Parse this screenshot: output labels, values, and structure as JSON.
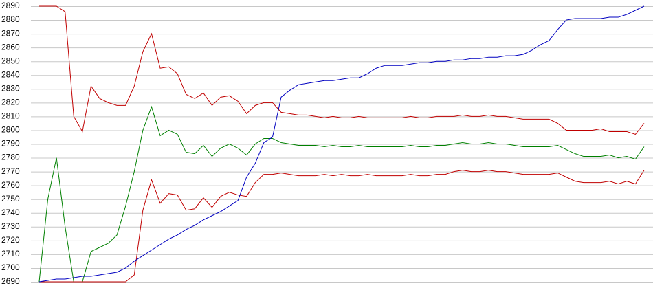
{
  "chart_data": {
    "type": "line",
    "ylim": [
      2690,
      2890
    ],
    "yticks": [
      2690,
      2700,
      2710,
      2720,
      2730,
      2740,
      2750,
      2760,
      2770,
      2780,
      2790,
      2800,
      2810,
      2820,
      2830,
      2840,
      2850,
      2860,
      2870,
      2880,
      2890
    ],
    "grid": true,
    "series": [
      {
        "color": "#c00000",
        "values": [
          2890,
          2890,
          2890,
          2886,
          2810,
          2799,
          2832,
          2823,
          2820,
          2818,
          2818,
          2832,
          2857,
          2870,
          2845,
          2846,
          2841,
          2826,
          2823,
          2827,
          2818,
          2824,
          2825,
          2821,
          2812,
          2818,
          2820,
          2820,
          2813,
          2812,
          2811,
          2811,
          2810,
          2809,
          2810,
          2809,
          2809,
          2810,
          2809,
          2809,
          2809,
          2809,
          2809,
          2810,
          2809,
          2809,
          2810,
          2810,
          2810,
          2811,
          2810,
          2810,
          2811,
          2810,
          2810,
          2809,
          2808,
          2808,
          2808,
          2808,
          2805,
          2800,
          2800,
          2800,
          2800,
          2801,
          2799,
          2799,
          2799,
          2797,
          2805
        ]
      },
      {
        "color": "#008000",
        "values": [
          2690,
          2750,
          2780,
          2730,
          2690,
          2690,
          2712,
          2715,
          2718,
          2724,
          2745,
          2770,
          2800,
          2817,
          2796,
          2800,
          2797,
          2784,
          2783,
          2789,
          2781,
          2787,
          2790,
          2787,
          2782,
          2790,
          2794,
          2794,
          2791,
          2790,
          2789,
          2789,
          2789,
          2788,
          2789,
          2788,
          2788,
          2789,
          2788,
          2788,
          2788,
          2788,
          2788,
          2789,
          2788,
          2788,
          2789,
          2789,
          2790,
          2791,
          2790,
          2790,
          2791,
          2790,
          2790,
          2789,
          2788,
          2788,
          2788,
          2788,
          2789,
          2786,
          2783,
          2781,
          2781,
          2781,
          2782,
          2780,
          2781,
          2779,
          2788
        ]
      },
      {
        "color": "#c00000",
        "values": [
          2690,
          2690,
          2690,
          2690,
          2690,
          2690,
          2690,
          2690,
          2690,
          2690,
          2690,
          2695,
          2742,
          2764,
          2747,
          2754,
          2753,
          2742,
          2743,
          2751,
          2744,
          2752,
          2755,
          2753,
          2752,
          2762,
          2768,
          2768,
          2769,
          2768,
          2767,
          2767,
          2767,
          2768,
          2767,
          2768,
          2767,
          2767,
          2768,
          2767,
          2767,
          2767,
          2767,
          2768,
          2767,
          2767,
          2768,
          2768,
          2770,
          2771,
          2770,
          2770,
          2771,
          2770,
          2770,
          2769,
          2768,
          2768,
          2768,
          2768,
          2769,
          2766,
          2763,
          2762,
          2762,
          2762,
          2763,
          2761,
          2763,
          2761,
          2771
        ]
      },
      {
        "color": "#0000c0",
        "values": [
          2690,
          2691,
          2692,
          2692,
          2693,
          2694,
          2694,
          2695,
          2696,
          2697,
          2700,
          2705,
          2709,
          2713,
          2717,
          2721,
          2724,
          2728,
          2731,
          2735,
          2738,
          2741,
          2745,
          2749,
          2766,
          2776,
          2791,
          2795,
          2824,
          2829,
          2833,
          2834,
          2835,
          2836,
          2836,
          2837,
          2838,
          2838,
          2841,
          2845,
          2847,
          2847,
          2847,
          2848,
          2849,
          2849,
          2850,
          2850,
          2851,
          2851,
          2852,
          2852,
          2853,
          2853,
          2854,
          2854,
          2855,
          2858,
          2862,
          2865,
          2873,
          2880,
          2881,
          2881,
          2881,
          2881,
          2882,
          2882,
          2884,
          2887,
          2890
        ]
      }
    ]
  }
}
